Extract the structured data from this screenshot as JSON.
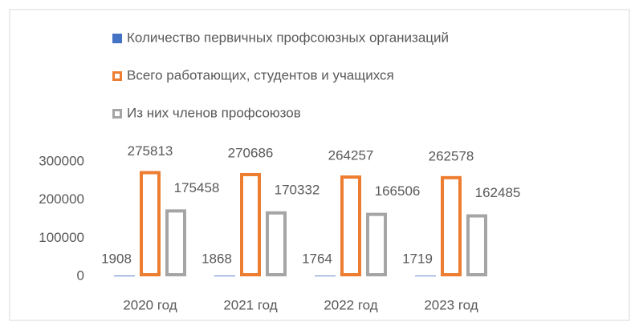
{
  "chart_data": {
    "type": "bar",
    "categories": [
      "2020 год",
      "2021 год",
      "2022 год",
      "2023 год"
    ],
    "series": [
      {
        "name": "Количество первичных профсоюзных организаций",
        "color": "#4472c4",
        "filled": true,
        "values": [
          1908,
          1868,
          1764,
          1719
        ]
      },
      {
        "name": "Всего работающих, студентов и учащихся",
        "color": "#ed7d31",
        "filled": false,
        "values": [
          275813,
          270686,
          264257,
          262578
        ]
      },
      {
        "name": "Из них членов профсоюзов",
        "color": "#a5a5a5",
        "filled": false,
        "values": [
          175458,
          170332,
          166506,
          162485
        ]
      }
    ],
    "ylim": [
      0,
      300000
    ],
    "yticks": [
      0,
      100000,
      200000,
      300000
    ],
    "grid": false,
    "legend": "top"
  }
}
